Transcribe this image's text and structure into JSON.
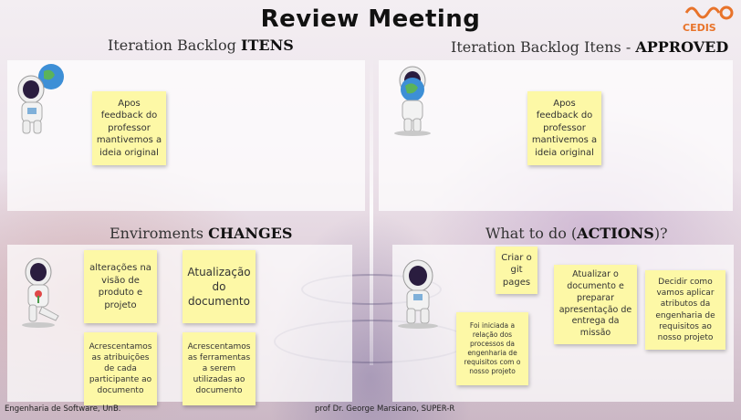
{
  "title": "Review Meeting",
  "logo": {
    "text": "CEDIS",
    "brand_color": "#e8732a"
  },
  "sections": {
    "backlog": {
      "prefix": "Iteration Backlog ",
      "bold": "ITENS"
    },
    "approved": {
      "prefix": "Iteration Backlog Itens - ",
      "bold": "APPROVED"
    },
    "changes": {
      "prefix": "Enviroments ",
      "bold": "CHANGES"
    },
    "actions": {
      "prefix": "What to do (",
      "bold": "ACTIONS",
      "suffix": ")?"
    }
  },
  "notes": {
    "backlog_1": "Apos feedback do professor mantivemos a ideia original",
    "approved_1": "Apos feedback do professor mantivemos a ideia original",
    "changes_1": "alterações na visão de produto e projeto",
    "changes_2": "Atualização do documento",
    "changes_3": "Acrescentamos as atribuições de cada participante ao documento",
    "changes_4": "Acrescentamos as ferramentas a serem utilizadas ao documento",
    "actions_1": "Criar o git pages",
    "actions_2": "Atualizar o documento e preparar apresentação de entrega da missão",
    "actions_3": "Decidir como vamos aplicar atributos da engenharia de requisitos ao nosso projeto",
    "actions_4": "Foi iniciada a relação dos processos da engenharia de requisitos com o nosso projeto"
  },
  "footer": {
    "left": "Engenharia de Software, UnB.",
    "center": "prof Dr. George Marsicano, SUPER-R"
  },
  "icons": [
    "astronaut-globe-icon",
    "astronaut-holding-earth-icon",
    "astronaut-flower-icon",
    "astronaut-standing-icon"
  ]
}
